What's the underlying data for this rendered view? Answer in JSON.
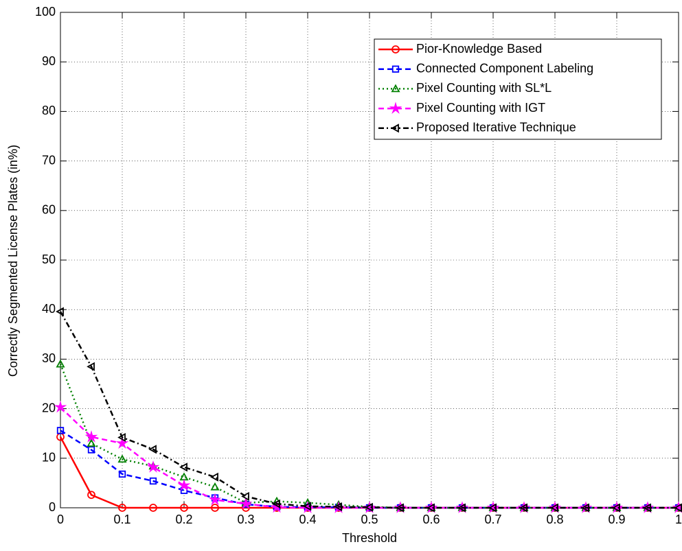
{
  "chart_data": {
    "type": "line",
    "xlabel": "Threshold",
    "ylabel": "Correctly Segmented License Plates (in%)",
    "x": [
      0,
      0.05,
      0.1,
      0.15,
      0.2,
      0.25,
      0.3,
      0.35,
      0.4,
      0.45,
      0.5,
      0.55,
      0.6,
      0.65,
      0.7,
      0.75,
      0.8,
      0.85,
      0.9,
      0.95,
      1
    ],
    "series": [
      {
        "name": "Pior-Knowledge Based",
        "color": "#ff0000",
        "marker": "circle",
        "linestyle": "solid",
        "values": [
          14.3,
          2.6,
          0,
          0,
          0,
          0,
          0,
          0,
          0,
          0,
          0,
          0,
          0,
          0,
          0,
          0,
          0,
          0,
          0,
          0,
          0
        ]
      },
      {
        "name": "Connected Component Labeling",
        "color": "#0000ff",
        "marker": "square",
        "linestyle": "dashed",
        "values": [
          15.6,
          11.7,
          6.8,
          5.4,
          3.5,
          2.0,
          0.7,
          0.2,
          0.1,
          0.1,
          0,
          0,
          0,
          0,
          0,
          0,
          0,
          0,
          0,
          0,
          0
        ]
      },
      {
        "name": "Pixel Counting with SL*L",
        "color": "#008000",
        "marker": "triangle-up",
        "linestyle": "dotted",
        "values": [
          29,
          13,
          9.8,
          8.4,
          6.2,
          4.2,
          1.0,
          1.3,
          1.0,
          0.6,
          0.2,
          0,
          0,
          0,
          0,
          0,
          0,
          0,
          0,
          0,
          0
        ]
      },
      {
        "name": "Pixel Counting with IGT",
        "color": "#ff00ff",
        "marker": "star",
        "linestyle": "dashed",
        "values": [
          20.3,
          14.3,
          13.0,
          8.2,
          4.5,
          1.6,
          0.8,
          0.1,
          0,
          0,
          0,
          0,
          0,
          0,
          0,
          0,
          0,
          0,
          0,
          0,
          0
        ]
      },
      {
        "name": "Proposed Iterative Technique",
        "color": "#000000",
        "marker": "triangle-left",
        "linestyle": "dashdot",
        "values": [
          39.6,
          28.5,
          14.2,
          11.8,
          8.2,
          6.2,
          2.3,
          0.8,
          0.3,
          0.2,
          0.1,
          0,
          0,
          0,
          0,
          0,
          0,
          0,
          0,
          0,
          0
        ]
      }
    ],
    "xlim": [
      0,
      1
    ],
    "xticks": [
      0,
      0.1,
      0.2,
      0.3,
      0.4,
      0.5,
      0.6,
      0.7,
      0.8,
      0.9,
      1
    ],
    "ylim": [
      0,
      100
    ],
    "yticks": [
      0,
      10,
      20,
      30,
      40,
      50,
      60,
      70,
      80,
      90,
      100
    ],
    "grid": true,
    "legend": "northeast"
  }
}
